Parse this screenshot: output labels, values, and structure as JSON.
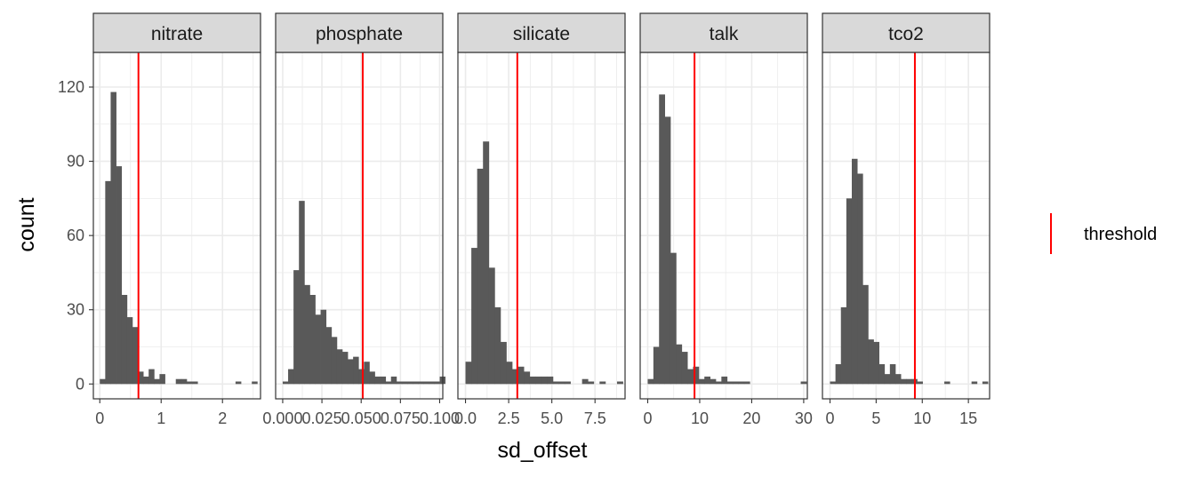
{
  "chart_data": {
    "type": "bar",
    "subtype": "faceted-histogram",
    "xlabel": "sd_offset",
    "ylabel": "count",
    "ylim": [
      -6,
      134
    ],
    "y_ticks": [
      0,
      30,
      60,
      90,
      120
    ],
    "y_tick_labels": [
      "0",
      "30",
      "60",
      "90",
      "120"
    ],
    "grid": true,
    "legend": {
      "position": "right",
      "entries": [
        {
          "label": "threshold",
          "color": "#ff0000"
        }
      ]
    },
    "colors": {
      "bar": "#595959",
      "threshold": "#ff0000",
      "grid": "#ebebeb",
      "strip": "#d9d9d9"
    },
    "panels": [
      {
        "name": "nitrate",
        "xlim": [
          -0.105,
          2.62
        ],
        "x_ticks": [
          0,
          1,
          2
        ],
        "x_tick_labels": [
          "0",
          "1",
          "2"
        ],
        "threshold": 0.63,
        "bin_width": 0.0885,
        "bins": [
          {
            "x": 0.0,
            "y": 2
          },
          {
            "x": 0.0885,
            "y": 82
          },
          {
            "x": 0.177,
            "y": 118
          },
          {
            "x": 0.2655,
            "y": 88
          },
          {
            "x": 0.354,
            "y": 36
          },
          {
            "x": 0.4425,
            "y": 27
          },
          {
            "x": 0.531,
            "y": 23
          },
          {
            "x": 0.6195,
            "y": 5
          },
          {
            "x": 0.708,
            "y": 3
          },
          {
            "x": 0.7965,
            "y": 6
          },
          {
            "x": 0.885,
            "y": 2
          },
          {
            "x": 0.9735,
            "y": 4
          },
          {
            "x": 1.239,
            "y": 2
          },
          {
            "x": 1.3275,
            "y": 2
          },
          {
            "x": 1.416,
            "y": 1
          },
          {
            "x": 1.5045,
            "y": 1
          },
          {
            "x": 2.2125,
            "y": 1
          },
          {
            "x": 2.478,
            "y": 1
          }
        ]
      },
      {
        "name": "phosphate",
        "xlim": [
          -0.0045,
          0.102
        ],
        "x_ticks": [
          0.0,
          0.025,
          0.05,
          0.075,
          0.1
        ],
        "x_tick_labels": [
          "0.000",
          "0.025",
          "0.050",
          "0.075",
          "0.100"
        ],
        "threshold": 0.051,
        "bin_width": 0.00345,
        "bins": [
          {
            "x": 0.0,
            "y": 1
          },
          {
            "x": 0.00345,
            "y": 6
          },
          {
            "x": 0.0069,
            "y": 46
          },
          {
            "x": 0.01035,
            "y": 74
          },
          {
            "x": 0.0138,
            "y": 40
          },
          {
            "x": 0.01725,
            "y": 36
          },
          {
            "x": 0.0207,
            "y": 28
          },
          {
            "x": 0.02415,
            "y": 30
          },
          {
            "x": 0.0276,
            "y": 23
          },
          {
            "x": 0.03105,
            "y": 19
          },
          {
            "x": 0.0345,
            "y": 14
          },
          {
            "x": 0.03795,
            "y": 13
          },
          {
            "x": 0.0414,
            "y": 10
          },
          {
            "x": 0.04485,
            "y": 11
          },
          {
            "x": 0.0483,
            "y": 6
          },
          {
            "x": 0.05175,
            "y": 9
          },
          {
            "x": 0.0552,
            "y": 5
          },
          {
            "x": 0.05865,
            "y": 3
          },
          {
            "x": 0.0621,
            "y": 3
          },
          {
            "x": 0.06555,
            "y": 1
          },
          {
            "x": 0.069,
            "y": 3
          },
          {
            "x": 0.07245,
            "y": 1
          },
          {
            "x": 0.0759,
            "y": 1
          },
          {
            "x": 0.07935,
            "y": 1
          },
          {
            "x": 0.0828,
            "y": 1
          },
          {
            "x": 0.08625,
            "y": 1
          },
          {
            "x": 0.0897,
            "y": 1
          },
          {
            "x": 0.09315,
            "y": 1
          },
          {
            "x": 0.0966,
            "y": 1
          },
          {
            "x": 0.10005,
            "y": 3
          }
        ]
      },
      {
        "name": "silicate",
        "xlim": [
          -0.44,
          9.24
        ],
        "x_ticks": [
          0,
          2.5,
          5,
          7.5
        ],
        "x_tick_labels": [
          "0.0",
          "2.5",
          "5.0",
          "7.5"
        ],
        "threshold": 3.0,
        "bin_width": 0.3375,
        "bins": [
          {
            "x": 0.0,
            "y": 9
          },
          {
            "x": 0.3375,
            "y": 55
          },
          {
            "x": 0.675,
            "y": 87
          },
          {
            "x": 1.0125,
            "y": 98
          },
          {
            "x": 1.35,
            "y": 47
          },
          {
            "x": 1.6875,
            "y": 31
          },
          {
            "x": 2.025,
            "y": 17
          },
          {
            "x": 2.3625,
            "y": 9
          },
          {
            "x": 2.7,
            "y": 6
          },
          {
            "x": 3.0375,
            "y": 7
          },
          {
            "x": 3.375,
            "y": 5
          },
          {
            "x": 3.7125,
            "y": 3
          },
          {
            "x": 4.05,
            "y": 3
          },
          {
            "x": 4.3875,
            "y": 3
          },
          {
            "x": 4.725,
            "y": 3
          },
          {
            "x": 5.0625,
            "y": 1
          },
          {
            "x": 5.4,
            "y": 1
          },
          {
            "x": 5.7375,
            "y": 1
          },
          {
            "x": 6.75,
            "y": 2
          },
          {
            "x": 7.0875,
            "y": 1
          },
          {
            "x": 7.7625,
            "y": 1
          },
          {
            "x": 8.775,
            "y": 1
          }
        ]
      },
      {
        "name": "talk",
        "xlim": [
          -1.45,
          30.7
        ],
        "x_ticks": [
          0,
          10,
          20,
          30
        ],
        "x_tick_labels": [
          "0",
          "10",
          "20",
          "30"
        ],
        "threshold": 9.0,
        "bin_width": 1.09,
        "bins": [
          {
            "x": 0.0,
            "y": 2
          },
          {
            "x": 1.09,
            "y": 15
          },
          {
            "x": 2.18,
            "y": 117
          },
          {
            "x": 3.27,
            "y": 108
          },
          {
            "x": 4.36,
            "y": 53
          },
          {
            "x": 5.45,
            "y": 16
          },
          {
            "x": 6.54,
            "y": 13
          },
          {
            "x": 7.63,
            "y": 6
          },
          {
            "x": 8.72,
            "y": 7
          },
          {
            "x": 9.81,
            "y": 2
          },
          {
            "x": 10.9,
            "y": 3
          },
          {
            "x": 11.99,
            "y": 2
          },
          {
            "x": 13.08,
            "y": 1
          },
          {
            "x": 14.17,
            "y": 3
          },
          {
            "x": 15.26,
            "y": 1
          },
          {
            "x": 16.35,
            "y": 1
          },
          {
            "x": 17.44,
            "y": 1
          },
          {
            "x": 18.53,
            "y": 1
          },
          {
            "x": 29.43,
            "y": 1
          }
        ]
      },
      {
        "name": "tco2",
        "xlim": [
          -0.82,
          17.3
        ],
        "x_ticks": [
          0,
          5,
          10,
          15
        ],
        "x_tick_labels": [
          "0",
          "5",
          "10",
          "15"
        ],
        "threshold": 9.2,
        "bin_width": 0.59,
        "bins": [
          {
            "x": 0.0,
            "y": 1
          },
          {
            "x": 0.59,
            "y": 8
          },
          {
            "x": 1.18,
            "y": 31
          },
          {
            "x": 1.77,
            "y": 75
          },
          {
            "x": 2.36,
            "y": 91
          },
          {
            "x": 2.95,
            "y": 85
          },
          {
            "x": 3.54,
            "y": 40
          },
          {
            "x": 4.13,
            "y": 18
          },
          {
            "x": 4.72,
            "y": 17
          },
          {
            "x": 5.31,
            "y": 8
          },
          {
            "x": 5.9,
            "y": 4
          },
          {
            "x": 6.49,
            "y": 8
          },
          {
            "x": 7.08,
            "y": 4
          },
          {
            "x": 7.67,
            "y": 2
          },
          {
            "x": 8.26,
            "y": 2
          },
          {
            "x": 8.85,
            "y": 2
          },
          {
            "x": 9.44,
            "y": 1
          },
          {
            "x": 12.39,
            "y": 1
          },
          {
            "x": 15.34,
            "y": 1
          },
          {
            "x": 16.52,
            "y": 1
          }
        ]
      }
    ]
  }
}
